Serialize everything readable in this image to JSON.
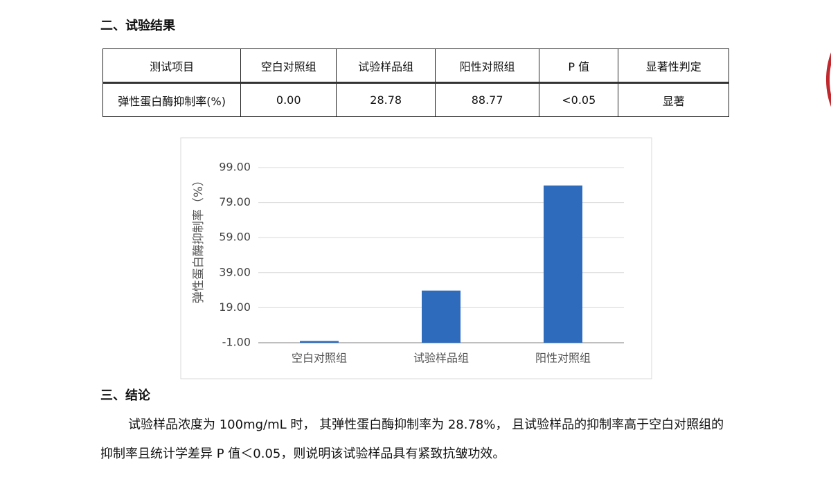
{
  "results_title": "二、试验结果",
  "table": {
    "header": [
      "测试项目",
      "空白对照组",
      "试验样品组",
      "阳性对照组",
      "P 值",
      "显著性判定"
    ],
    "rows": [
      [
        "弹性蛋白酶抑制率(%)",
        "0.00",
        "28.78",
        "88.77",
        "<0.05",
        "显著"
      ]
    ]
  },
  "chart_data": {
    "type": "bar",
    "y_label": "弹性蛋白酶抑制率（%）",
    "categories": [
      "空白对照组",
      "试验样品组",
      "阳性对照组"
    ],
    "values": [
      0,
      28.78,
      88.77
    ],
    "color": "#2e6bbd",
    "ylim": [
      -1,
      99
    ],
    "yticks": [
      {
        "value": -1,
        "label": "-1.00"
      },
      {
        "value": 19,
        "label": "19.00"
      },
      {
        "value": 39,
        "label": "39.00"
      },
      {
        "value": 59,
        "label": "59.00"
      },
      {
        "value": 79,
        "label": "79.00"
      },
      {
        "value": 99,
        "label": "99.00"
      }
    ],
    "grid": true
  },
  "conclusion_title": "三、结论",
  "conclusion_text": "试验样品浓度为 100mg/mL 时， 其弹性蛋白酶抑制率为 28.78%， 且试验样品的抑制率高于空白对照组的抑制率且统计学差异 P 值＜0.05，则说明该试验样品具有紧致抗皱功效。"
}
